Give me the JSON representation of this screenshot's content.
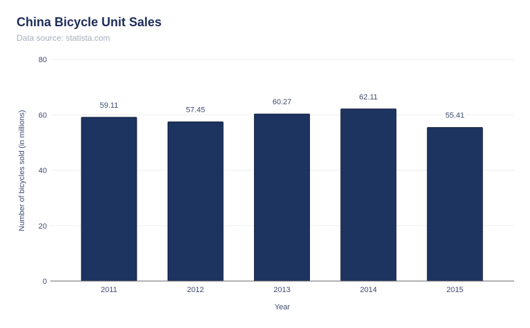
{
  "chart_data": {
    "type": "bar",
    "title": "China Bicycle Unit Sales",
    "subtitle": "Data source: statista.com",
    "xlabel": "Year",
    "ylabel": "Number of bicycles sold (in millions)",
    "categories": [
      "2011",
      "2012",
      "2013",
      "2014",
      "2015"
    ],
    "values": [
      59.11,
      57.45,
      60.27,
      62.11,
      55.41
    ],
    "data_labels": [
      "59.11",
      "57.45",
      "60.27",
      "62.11",
      "55.41"
    ],
    "ylim": [
      0,
      80
    ],
    "yticks": [
      "0",
      "20",
      "40",
      "60",
      "80"
    ],
    "grid": true,
    "bar_color": "#1d3461"
  }
}
